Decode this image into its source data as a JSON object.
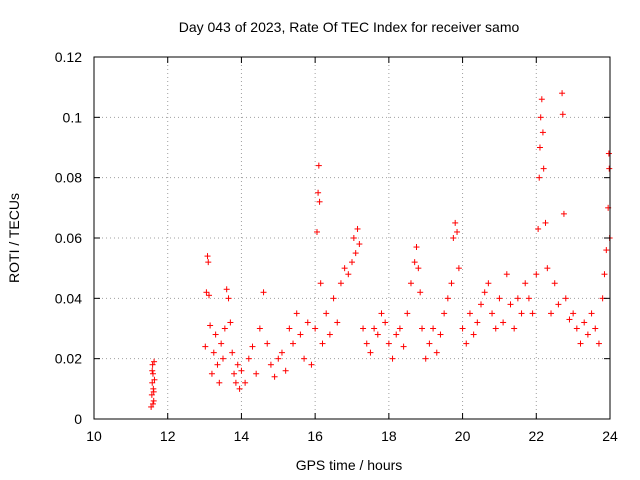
{
  "chart_data": {
    "type": "scatter",
    "title": "Day 043 of 2023, Rate Of TEC Index for receiver samo",
    "xlabel": "GPS time / hours",
    "ylabel": "ROTI / TECUs",
    "xlim": [
      10,
      24
    ],
    "ylim": [
      0,
      0.12
    ],
    "x_ticks": [
      10,
      12,
      14,
      16,
      18,
      20,
      22,
      24
    ],
    "x_tick_labels": [
      "10",
      "12",
      "14",
      "16",
      "18",
      "20",
      "22",
      "24"
    ],
    "y_ticks": [
      0,
      0.02,
      0.04,
      0.06,
      0.08,
      0.1,
      0.12
    ],
    "y_tick_labels": [
      "0",
      "0.02",
      "0.04",
      "0.06",
      "0.08",
      "0.1",
      "0.12"
    ],
    "grid": true,
    "legend": "none",
    "marker": "+",
    "color": "#ff0000",
    "series": [
      {
        "x": [
          11.55,
          11.57,
          11.58,
          11.59,
          11.6,
          11.61,
          11.62,
          11.63,
          11.64,
          11.6,
          11.58,
          11.62,
          13.02,
          13.05,
          13.08,
          13.1,
          13.12,
          13.15,
          13.2,
          13.25,
          13.3,
          13.35,
          13.4,
          13.45,
          13.5,
          13.55,
          13.6,
          13.65,
          13.7,
          13.75,
          13.8,
          13.85,
          13.9,
          13.95,
          14.0,
          14.1,
          14.2,
          14.3,
          14.4,
          14.5,
          14.6,
          14.7,
          14.8,
          14.9,
          15.0,
          15.1,
          15.2,
          15.3,
          15.4,
          15.5,
          15.6,
          15.7,
          15.8,
          15.9,
          16.0,
          16.05,
          16.08,
          16.1,
          16.12,
          16.15,
          16.2,
          16.3,
          16.4,
          16.5,
          16.6,
          16.7,
          16.8,
          16.9,
          17.0,
          17.05,
          17.1,
          17.15,
          17.2,
          17.3,
          17.4,
          17.5,
          17.6,
          17.7,
          17.8,
          17.9,
          18.0,
          18.1,
          18.2,
          18.3,
          18.4,
          18.5,
          18.6,
          18.7,
          18.75,
          18.8,
          18.85,
          18.9,
          19.0,
          19.1,
          19.2,
          19.3,
          19.4,
          19.5,
          19.6,
          19.7,
          19.75,
          19.8,
          19.85,
          19.9,
          20.0,
          20.1,
          20.2,
          20.3,
          20.4,
          20.5,
          20.6,
          20.7,
          20.8,
          20.9,
          21.0,
          21.1,
          21.2,
          21.3,
          21.4,
          21.5,
          21.6,
          21.7,
          21.8,
          21.9,
          22.0,
          22.05,
          22.08,
          22.1,
          22.12,
          22.15,
          22.18,
          22.2,
          22.25,
          22.3,
          22.4,
          22.5,
          22.6,
          22.7,
          22.72,
          22.75,
          22.8,
          22.9,
          23.0,
          23.1,
          23.2,
          23.3,
          23.4,
          23.5,
          23.6,
          23.7,
          23.8,
          23.85,
          23.9,
          23.95,
          23.97,
          23.98,
          23.99
        ],
        "y": [
          0.004,
          0.008,
          0.012,
          0.018,
          0.015,
          0.01,
          0.006,
          0.019,
          0.013,
          0.005,
          0.016,
          0.009,
          0.024,
          0.042,
          0.054,
          0.052,
          0.041,
          0.031,
          0.015,
          0.022,
          0.028,
          0.018,
          0.012,
          0.025,
          0.02,
          0.03,
          0.043,
          0.04,
          0.032,
          0.022,
          0.015,
          0.012,
          0.018,
          0.01,
          0.016,
          0.012,
          0.02,
          0.024,
          0.015,
          0.03,
          0.042,
          0.025,
          0.018,
          0.014,
          0.02,
          0.022,
          0.016,
          0.03,
          0.025,
          0.035,
          0.028,
          0.02,
          0.032,
          0.018,
          0.03,
          0.062,
          0.075,
          0.084,
          0.072,
          0.045,
          0.025,
          0.035,
          0.028,
          0.04,
          0.032,
          0.045,
          0.05,
          0.048,
          0.052,
          0.06,
          0.055,
          0.063,
          0.058,
          0.03,
          0.025,
          0.022,
          0.03,
          0.028,
          0.035,
          0.032,
          0.025,
          0.02,
          0.028,
          0.03,
          0.024,
          0.035,
          0.045,
          0.052,
          0.057,
          0.05,
          0.042,
          0.03,
          0.02,
          0.025,
          0.03,
          0.022,
          0.028,
          0.035,
          0.04,
          0.045,
          0.06,
          0.065,
          0.062,
          0.05,
          0.03,
          0.025,
          0.035,
          0.028,
          0.032,
          0.038,
          0.042,
          0.045,
          0.035,
          0.03,
          0.04,
          0.032,
          0.048,
          0.038,
          0.03,
          0.04,
          0.035,
          0.045,
          0.04,
          0.035,
          0.048,
          0.063,
          0.08,
          0.09,
          0.1,
          0.106,
          0.095,
          0.083,
          0.065,
          0.05,
          0.035,
          0.045,
          0.038,
          0.108,
          0.101,
          0.068,
          0.04,
          0.033,
          0.035,
          0.03,
          0.025,
          0.032,
          0.028,
          0.035,
          0.03,
          0.025,
          0.04,
          0.048,
          0.056,
          0.07,
          0.088,
          0.083,
          0.06
        ]
      }
    ]
  }
}
